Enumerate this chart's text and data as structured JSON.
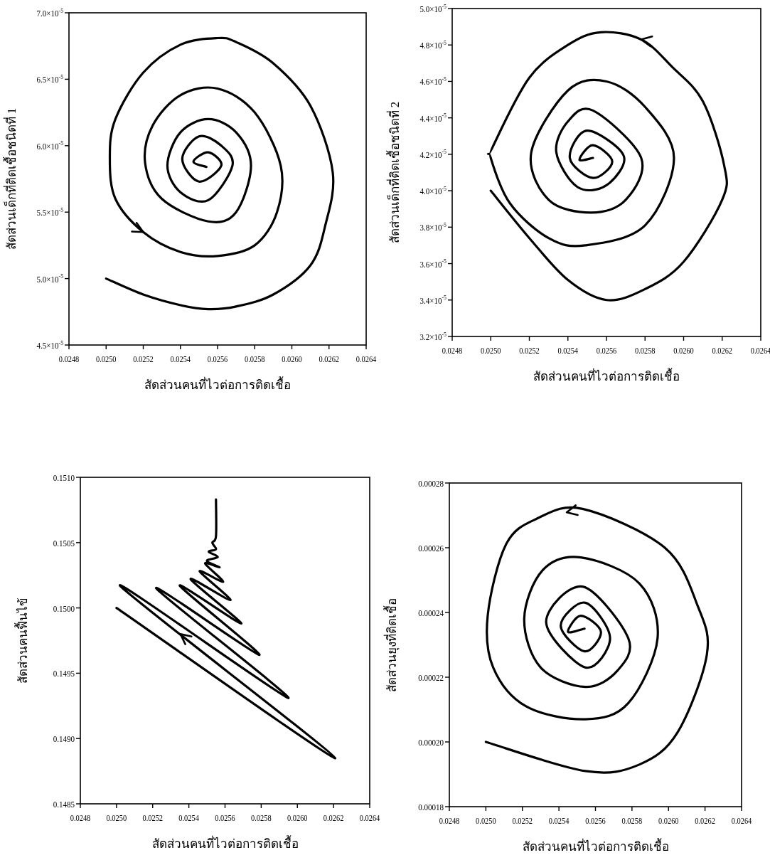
{
  "chart_data": [
    {
      "type": "line",
      "xlabel": "สัดส่วนคนที่ไวต่อการติดเชื้อ",
      "ylabel": "สัดส่วนเด็กที่ติดเชื้อชนิดที่ 1",
      "xlim": [
        0.0248,
        0.0264
      ],
      "ylim": [
        4.5e-05,
        7e-05
      ],
      "xticks": [
        {
          "value": 0.0248,
          "label": "0.0248"
        },
        {
          "value": 0.025,
          "label": "0.0250"
        },
        {
          "value": 0.0252,
          "label": "0.0252"
        },
        {
          "value": 0.0254,
          "label": "0.0254"
        },
        {
          "value": 0.0256,
          "label": "0.0256"
        },
        {
          "value": 0.0258,
          "label": "0.0258"
        },
        {
          "value": 0.026,
          "label": "0.0260"
        },
        {
          "value": 0.0262,
          "label": "0.0262"
        },
        {
          "value": 0.0264,
          "label": "0.0264"
        }
      ],
      "yticks": [
        {
          "value": 4.5e-05,
          "label": "4.5×10$^{-5}$"
        },
        {
          "value": 5e-05,
          "label": "5.0×10$^{-5}$"
        },
        {
          "value": 5.5e-05,
          "label": "5.5×10$^{-5}$"
        },
        {
          "value": 6e-05,
          "label": "6.0×10$^{-5}$"
        },
        {
          "value": 6.5e-05,
          "label": "6.5×10$^{-5}$"
        },
        {
          "value": 7e-05,
          "label": "7.0×10$^{-5}$"
        }
      ],
      "series": [
        {
          "color": "#000000",
          "x": [
            0.025,
            0.0252,
            0.0254,
            0.02555,
            0.0257,
            0.0259,
            0.0261,
            0.02618,
            0.02622,
            0.0261,
            0.0259,
            0.0257,
            0.0256,
            0.0254,
            0.0252,
            0.02505,
            0.02502,
            0.02505,
            0.0252,
            0.0254,
            0.0256,
            0.0258,
            0.02592,
            0.02594,
            0.0258,
            0.0256,
            0.0254,
            0.02525,
            0.02521,
            0.0253,
            0.02555,
            0.0257,
            0.02578,
            0.0257,
            0.02555,
            0.0254,
            0.02533,
            0.0254,
            0.02555,
            0.02568,
            0.02562,
            0.0255,
            0.02541,
            0.0255,
            0.02562,
            0.02555,
            0.02547,
            0.02554
          ],
          "values": [
            5e-05,
            4.88e-05,
            4.8e-05,
            4.77e-05,
            4.79e-05,
            4.88e-05,
            5.1e-05,
            5.4e-05,
            5.8e-05,
            6.3e-05,
            6.62e-05,
            6.78e-05,
            6.81e-05,
            6.76e-05,
            6.55e-05,
            6.2e-05,
            5.91e-05,
            5.6e-05,
            5.35e-05,
            5.2e-05,
            5.17e-05,
            5.25e-05,
            5.5e-05,
            5.85e-05,
            6.25e-05,
            6.43e-05,
            6.38e-05,
            6.15e-05,
            5.87e-05,
            5.6e-05,
            5.43e-05,
            5.5e-05,
            5.85e-05,
            6.1e-05,
            6.2e-05,
            6.1e-05,
            5.85e-05,
            5.65e-05,
            5.59e-05,
            5.85e-05,
            6e-05,
            6.07e-05,
            5.9e-05,
            5.73e-05,
            5.85e-05,
            5.95e-05,
            5.88e-05,
            5.84e-05
          ]
        }
      ]
    },
    {
      "type": "line",
      "xlabel": "สัดส่วนคนที่ไวต่อการติดเชื้อ",
      "ylabel": "สัดส่วนเด็กที่ติดเชื้อชนิดที่ 2",
      "xlim": [
        0.0248,
        0.0264
      ],
      "ylim": [
        3.2e-05,
        5e-05
      ],
      "xticks": [
        {
          "value": 0.0248,
          "label": "0.0248"
        },
        {
          "value": 0.025,
          "label": "0.0250"
        },
        {
          "value": 0.0252,
          "label": "0.0252"
        },
        {
          "value": 0.0254,
          "label": "0.0254"
        },
        {
          "value": 0.0256,
          "label": "0.0256"
        },
        {
          "value": 0.0258,
          "label": "0.0258"
        },
        {
          "value": 0.026,
          "label": "0.0260"
        },
        {
          "value": 0.0262,
          "label": "0.0262"
        },
        {
          "value": 0.0264,
          "label": "0.0264"
        }
      ],
      "yticks": [
        {
          "value": 3.2e-05,
          "label": "3.2×10$^{-5}$"
        },
        {
          "value": 3.4e-05,
          "label": "3.4×10$^{-5}$"
        },
        {
          "value": 3.6e-05,
          "label": "3.6×10$^{-5}$"
        },
        {
          "value": 3.8e-05,
          "label": "3.8×10$^{-5}$"
        },
        {
          "value": 4e-05,
          "label": "4.0×10$^{-5}$"
        },
        {
          "value": 4.2e-05,
          "label": "4.2×10$^{-5}$"
        },
        {
          "value": 4.4e-05,
          "label": "4.4×10$^{-5}$"
        },
        {
          "value": 4.6e-05,
          "label": "4.6×10$^{-5}$"
        },
        {
          "value": 4.8e-05,
          "label": "4.8×10$^{-5}$"
        },
        {
          "value": 5e-05,
          "label": "5.0×10$^{-5}$"
        }
      ],
      "series": [
        {
          "color": "#000000",
          "x": [
            0.025,
            0.0252,
            0.0254,
            0.0256,
            0.0258,
            0.026,
            0.0262,
            0.02621,
            0.0261,
            0.02594,
            0.02578,
            0.02557,
            0.0254,
            0.0252,
            0.02501,
            0.025,
            0.0251,
            0.0253,
            0.02549,
            0.0258,
            0.02595,
            0.0258,
            0.0256,
            0.0254,
            0.02521,
            0.0253,
            0.02552,
            0.0257,
            0.02578,
            0.02553,
            0.0254,
            0.02534,
            0.02545,
            0.0256,
            0.02569,
            0.0255,
            0.02541,
            0.02553,
            0.02563,
            0.02553,
            0.02546,
            0.02553
          ],
          "values": [
            4e-05,
            3.74e-05,
            3.51e-05,
            3.4e-05,
            3.46e-05,
            3.61e-05,
            3.95e-05,
            4.14e-05,
            4.49e-05,
            4.68e-05,
            4.83e-05,
            4.87e-05,
            4.8e-05,
            4.62e-05,
            4.24e-05,
            4.18e-05,
            3.93e-05,
            3.74e-05,
            3.7e-05,
            3.81e-05,
            4.18e-05,
            4.46e-05,
            4.6e-05,
            4.55e-05,
            4.21e-05,
            3.95e-05,
            3.88e-05,
            3.95e-05,
            4.18e-05,
            4.44e-05,
            4.38e-05,
            4.21e-05,
            4.02e-05,
            4.03e-05,
            4.19e-05,
            4.33e-05,
            4.18e-05,
            4.07e-05,
            4.16e-05,
            4.25e-05,
            4.17e-05,
            4.18e-05
          ]
        }
      ]
    },
    {
      "type": "line",
      "xlabel": "สัดส่วนคนที่ไวต่อการติดเชื้อ",
      "ylabel": "สัดส่วนคนฟื้นไข้",
      "xlim": [
        0.0248,
        0.0264
      ],
      "ylim": [
        0.1485,
        0.151
      ],
      "xticks": [
        {
          "value": 0.0248,
          "label": "0.0248"
        },
        {
          "value": 0.025,
          "label": "0.0250"
        },
        {
          "value": 0.0252,
          "label": "0.0252"
        },
        {
          "value": 0.0254,
          "label": "0.0254"
        },
        {
          "value": 0.0256,
          "label": "0.0256"
        },
        {
          "value": 0.0258,
          "label": "0.0258"
        },
        {
          "value": 0.026,
          "label": "0.0260"
        },
        {
          "value": 0.0262,
          "label": "0.0262"
        },
        {
          "value": 0.0264,
          "label": "0.0264"
        }
      ],
      "yticks": [
        {
          "value": 0.1485,
          "label": "0.1485"
        },
        {
          "value": 0.149,
          "label": "0.1490"
        },
        {
          "value": 0.1495,
          "label": "0.1495"
        },
        {
          "value": 0.15,
          "label": "0.1500"
        },
        {
          "value": 0.1505,
          "label": "0.1505"
        },
        {
          "value": 0.151,
          "label": "0.1510"
        }
      ],
      "series": [
        {
          "color": "#000000",
          "x": [
            0.025,
            0.02621,
            0.02502,
            0.02595,
            0.02522,
            0.02579,
            0.02535,
            0.02569,
            0.02541,
            0.02563,
            0.02546,
            0.02559,
            0.02549,
            0.02557,
            0.0255,
            0.02556,
            0.02551,
            0.02555,
            0.02553,
            0.02555,
            0.02555
          ],
          "values": [
            0.15,
            0.14885,
            0.15017,
            0.14931,
            0.15015,
            0.14964,
            0.15017,
            0.14988,
            0.15022,
            0.15006,
            0.15028,
            0.1502,
            0.15034,
            0.15031,
            0.15036,
            0.15039,
            0.15043,
            0.15045,
            0.1505,
            0.15055,
            0.15083
          ]
        }
      ]
    },
    {
      "type": "line",
      "xlabel": "สัดส่วนคนที่ไวต่อการติดเชื้อ",
      "ylabel": "สัดส่วนยุงที่ติดเชื้อ",
      "xlim": [
        0.0248,
        0.0264
      ],
      "ylim": [
        0.00018,
        0.00028
      ],
      "xticks": [
        {
          "value": 0.0248,
          "label": "0.0248"
        },
        {
          "value": 0.025,
          "label": "0.0250"
        },
        {
          "value": 0.0252,
          "label": "0.0252"
        },
        {
          "value": 0.0254,
          "label": "0.0254"
        },
        {
          "value": 0.0256,
          "label": "0.0256"
        },
        {
          "value": 0.0258,
          "label": "0.0258"
        },
        {
          "value": 0.026,
          "label": "0.0260"
        },
        {
          "value": 0.0262,
          "label": "0.0262"
        },
        {
          "value": 0.0264,
          "label": "0.0264"
        }
      ],
      "yticks": [
        {
          "value": 0.00018,
          "label": "0.00018"
        },
        {
          "value": 0.0002,
          "label": "0.00020"
        },
        {
          "value": 0.00022,
          "label": "0.00022"
        },
        {
          "value": 0.00024,
          "label": "0.00024"
        },
        {
          "value": 0.00026,
          "label": "0.00026"
        },
        {
          "value": 0.00028,
          "label": "0.00028"
        }
      ],
      "series": [
        {
          "color": "#000000",
          "x": [
            0.025,
            0.025545,
            0.02584,
            0.02605,
            0.02621,
            0.02616,
            0.02598,
            0.02553,
            0.02528,
            0.02511,
            0.02501,
            0.02504,
            0.02522,
            0.025545,
            0.02578,
            0.02594,
            0.02584,
            0.02552,
            0.02531,
            0.02521,
            0.0253,
            0.025545,
            0.02572,
            0.02578,
            0.02553,
            0.02533,
            0.025545,
            0.02568,
            0.025545,
            0.02541,
            0.02554,
            0.02563,
            0.02552,
            0.02545,
            0.02554
          ],
          "values": [
            0.0002,
            0.000191,
            0.000193,
            0.000203,
            0.000227,
            0.000242,
            0.00026,
            0.000272,
            0.000269,
            0.000261,
            0.000239,
            0.000223,
            0.000211,
            0.000207,
            0.000212,
            0.000232,
            0.000249,
            0.000257,
            0.000253,
            0.000238,
            0.000223,
            0.000217,
            0.000222,
            0.000232,
            0.000248,
            0.000237,
            0.000223,
            0.000232,
            0.000243,
            0.000236,
            0.000228,
            0.000234,
            0.000239,
            0.000234,
            0.000235
          ]
        }
      ]
    }
  ]
}
